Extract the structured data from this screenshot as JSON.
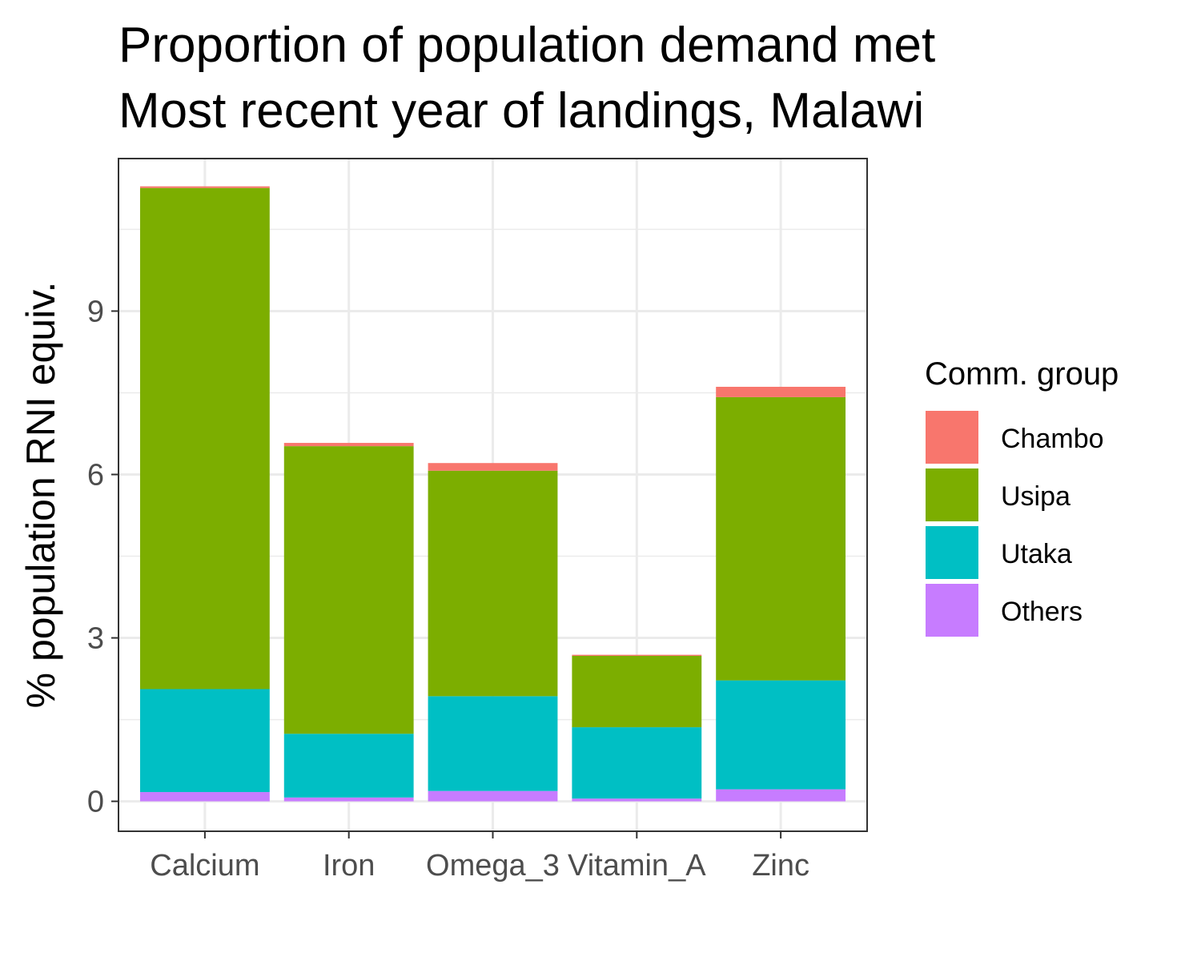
{
  "chart_data": {
    "type": "bar",
    "stacked": true,
    "title": "Proportion of population demand met\nMost recent year of landings, Malawi",
    "title_lines": [
      "Proportion of population demand met",
      "Most recent year of landings, Malawi"
    ],
    "xlabel": "",
    "ylabel": "% population RNI equiv.",
    "ylim": [
      -0.55,
      11.8
    ],
    "yticks": [
      0,
      3,
      6,
      9
    ],
    "categories": [
      "Calcium",
      "Iron",
      "Omega_3",
      "Vitamin_A",
      "Zinc"
    ],
    "legend": {
      "title": "Comm. group",
      "position": "right"
    },
    "grid": true,
    "series": [
      {
        "name": "Others",
        "color": "#C77CFF",
        "values": [
          0.17,
          0.07,
          0.19,
          0.05,
          0.22
        ]
      },
      {
        "name": "Utaka",
        "color": "#00BFC4",
        "values": [
          1.89,
          1.17,
          1.74,
          1.31,
          2.0
        ]
      },
      {
        "name": "Usipa",
        "color": "#7CAE00",
        "values": [
          9.2,
          5.28,
          4.14,
          1.31,
          5.2
        ]
      },
      {
        "name": "Chambo",
        "color": "#F8766D",
        "values": [
          0.03,
          0.06,
          0.14,
          0.02,
          0.19
        ]
      }
    ],
    "legend_order": [
      "Chambo",
      "Usipa",
      "Utaka",
      "Others"
    ]
  }
}
